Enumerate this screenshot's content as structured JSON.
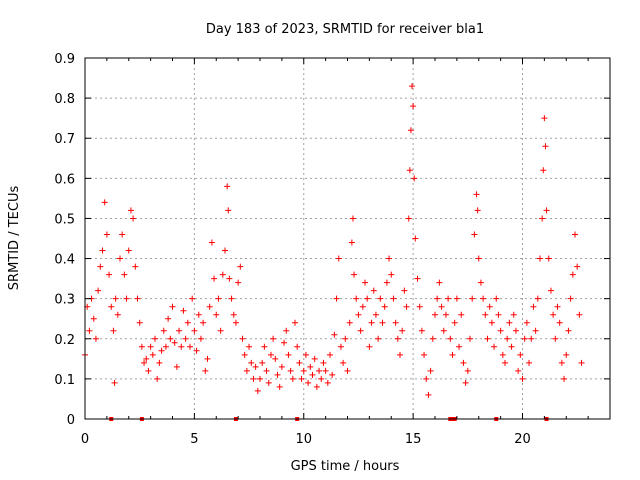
{
  "chart_data": {
    "type": "scatter",
    "title": "Day 183 of 2023, SRMTID for receiver bla1",
    "xlabel": "GPS time / hours",
    "ylabel": "SRMTID / TECUs",
    "xlim": [
      0,
      24
    ],
    "ylim": [
      0,
      0.9
    ],
    "xticks": [
      0,
      5,
      10,
      15,
      20
    ],
    "xtick_labels": [
      "0",
      "5",
      "10",
      "15",
      "20"
    ],
    "yticks": [
      0,
      0.1,
      0.2,
      0.3,
      0.4,
      0.5,
      0.6,
      0.7,
      0.8,
      0.9
    ],
    "ytick_labels": [
      "0",
      "0.1",
      "0.2",
      "0.3",
      "0.4",
      "0.5",
      "0.6",
      "0.7",
      "0.8",
      "0.9"
    ],
    "grid": true,
    "marker": "+",
    "color": "#ff0000",
    "series": [
      {
        "name": "SRMTID",
        "points": [
          [
            0.0,
            0.16
          ],
          [
            0.1,
            0.28
          ],
          [
            0.2,
            0.22
          ],
          [
            0.3,
            0.3
          ],
          [
            0.4,
            0.25
          ],
          [
            0.5,
            0.2
          ],
          [
            0.6,
            0.32
          ],
          [
            0.7,
            0.38
          ],
          [
            0.8,
            0.42
          ],
          [
            0.9,
            0.54
          ],
          [
            1.0,
            0.46
          ],
          [
            1.1,
            0.36
          ],
          [
            1.2,
            0.28
          ],
          [
            1.3,
            0.22
          ],
          [
            1.35,
            0.09
          ],
          [
            1.4,
            0.3
          ],
          [
            1.5,
            0.26
          ],
          [
            1.6,
            0.4
          ],
          [
            1.7,
            0.46
          ],
          [
            1.8,
            0.36
          ],
          [
            1.9,
            0.3
          ],
          [
            2.0,
            0.42
          ],
          [
            2.1,
            0.52
          ],
          [
            2.2,
            0.5
          ],
          [
            2.3,
            0.38
          ],
          [
            2.4,
            0.3
          ],
          [
            2.5,
            0.24
          ],
          [
            2.6,
            0.18
          ],
          [
            2.7,
            0.14
          ],
          [
            2.8,
            0.15
          ],
          [
            2.9,
            0.12
          ],
          [
            3.0,
            0.18
          ],
          [
            3.1,
            0.16
          ],
          [
            3.2,
            0.2
          ],
          [
            3.3,
            0.1
          ],
          [
            3.4,
            0.14
          ],
          [
            3.5,
            0.17
          ],
          [
            3.6,
            0.22
          ],
          [
            3.7,
            0.18
          ],
          [
            3.8,
            0.25
          ],
          [
            3.9,
            0.2
          ],
          [
            4.0,
            0.28
          ],
          [
            4.1,
            0.19
          ],
          [
            4.2,
            0.13
          ],
          [
            4.3,
            0.22
          ],
          [
            4.4,
            0.18
          ],
          [
            4.5,
            0.27
          ],
          [
            4.6,
            0.2
          ],
          [
            4.7,
            0.24
          ],
          [
            4.8,
            0.18
          ],
          [
            4.9,
            0.3
          ],
          [
            5.0,
            0.22
          ],
          [
            5.1,
            0.17
          ],
          [
            5.2,
            0.26
          ],
          [
            5.3,
            0.2
          ],
          [
            5.4,
            0.24
          ],
          [
            5.5,
            0.12
          ],
          [
            5.6,
            0.15
          ],
          [
            5.7,
            0.28
          ],
          [
            5.8,
            0.44
          ],
          [
            5.9,
            0.35
          ],
          [
            6.0,
            0.26
          ],
          [
            6.1,
            0.3
          ],
          [
            6.2,
            0.22
          ],
          [
            6.3,
            0.36
          ],
          [
            6.4,
            0.42
          ],
          [
            6.5,
            0.58
          ],
          [
            6.55,
            0.52
          ],
          [
            6.6,
            0.35
          ],
          [
            6.7,
            0.3
          ],
          [
            6.8,
            0.26
          ],
          [
            6.9,
            0.24
          ],
          [
            7.0,
            0.34
          ],
          [
            7.1,
            0.38
          ],
          [
            7.2,
            0.2
          ],
          [
            7.3,
            0.16
          ],
          [
            7.4,
            0.12
          ],
          [
            7.5,
            0.18
          ],
          [
            7.6,
            0.14
          ],
          [
            7.7,
            0.1
          ],
          [
            7.8,
            0.13
          ],
          [
            7.9,
            0.07
          ],
          [
            8.0,
            0.1
          ],
          [
            8.1,
            0.14
          ],
          [
            8.2,
            0.18
          ],
          [
            8.3,
            0.12
          ],
          [
            8.4,
            0.09
          ],
          [
            8.5,
            0.16
          ],
          [
            8.6,
            0.2
          ],
          [
            8.7,
            0.15
          ],
          [
            8.8,
            0.11
          ],
          [
            8.9,
            0.08
          ],
          [
            9.0,
            0.13
          ],
          [
            9.1,
            0.19
          ],
          [
            9.2,
            0.22
          ],
          [
            9.3,
            0.16
          ],
          [
            9.4,
            0.12
          ],
          [
            9.5,
            0.1
          ],
          [
            9.6,
            0.24
          ],
          [
            9.7,
            0.18
          ],
          [
            9.8,
            0.14
          ],
          [
            9.9,
            0.1
          ],
          [
            10.0,
            0.12
          ],
          [
            10.1,
            0.16
          ],
          [
            10.2,
            0.09
          ],
          [
            10.3,
            0.13
          ],
          [
            10.4,
            0.11
          ],
          [
            10.5,
            0.15
          ],
          [
            10.6,
            0.08
          ],
          [
            10.7,
            0.12
          ],
          [
            10.8,
            0.1
          ],
          [
            10.9,
            0.14
          ],
          [
            11.0,
            0.12
          ],
          [
            11.1,
            0.09
          ],
          [
            11.2,
            0.16
          ],
          [
            11.3,
            0.11
          ],
          [
            11.4,
            0.21
          ],
          [
            11.5,
            0.3
          ],
          [
            11.6,
            0.4
          ],
          [
            11.7,
            0.18
          ],
          [
            11.8,
            0.14
          ],
          [
            11.9,
            0.2
          ],
          [
            12.0,
            0.12
          ],
          [
            12.1,
            0.24
          ],
          [
            12.2,
            0.44
          ],
          [
            12.25,
            0.5
          ],
          [
            12.3,
            0.36
          ],
          [
            12.4,
            0.3
          ],
          [
            12.5,
            0.26
          ],
          [
            12.6,
            0.22
          ],
          [
            12.7,
            0.28
          ],
          [
            12.8,
            0.34
          ],
          [
            12.9,
            0.3
          ],
          [
            13.0,
            0.18
          ],
          [
            13.1,
            0.24
          ],
          [
            13.2,
            0.32
          ],
          [
            13.3,
            0.26
          ],
          [
            13.4,
            0.2
          ],
          [
            13.5,
            0.3
          ],
          [
            13.6,
            0.24
          ],
          [
            13.7,
            0.28
          ],
          [
            13.8,
            0.34
          ],
          [
            13.9,
            0.4
          ],
          [
            14.0,
            0.36
          ],
          [
            14.1,
            0.3
          ],
          [
            14.2,
            0.24
          ],
          [
            14.3,
            0.2
          ],
          [
            14.4,
            0.16
          ],
          [
            14.5,
            0.22
          ],
          [
            14.6,
            0.32
          ],
          [
            14.7,
            0.28
          ],
          [
            14.8,
            0.5
          ],
          [
            14.85,
            0.62
          ],
          [
            14.9,
            0.72
          ],
          [
            14.95,
            0.83
          ],
          [
            15.0,
            0.78
          ],
          [
            15.05,
            0.6
          ],
          [
            15.1,
            0.45
          ],
          [
            15.2,
            0.35
          ],
          [
            15.3,
            0.28
          ],
          [
            15.4,
            0.22
          ],
          [
            15.5,
            0.16
          ],
          [
            15.6,
            0.1
          ],
          [
            15.7,
            0.06
          ],
          [
            15.8,
            0.12
          ],
          [
            15.9,
            0.2
          ],
          [
            16.0,
            0.26
          ],
          [
            16.1,
            0.3
          ],
          [
            16.2,
            0.34
          ],
          [
            16.3,
            0.28
          ],
          [
            16.4,
            0.22
          ],
          [
            16.5,
            0.26
          ],
          [
            16.6,
            0.3
          ],
          [
            16.7,
            0.2
          ],
          [
            16.8,
            0.16
          ],
          [
            16.9,
            0.24
          ],
          [
            17.0,
            0.3
          ],
          [
            17.1,
            0.18
          ],
          [
            17.2,
            0.26
          ],
          [
            17.3,
            0.14
          ],
          [
            17.4,
            0.09
          ],
          [
            17.5,
            0.12
          ],
          [
            17.6,
            0.2
          ],
          [
            17.7,
            0.3
          ],
          [
            17.8,
            0.46
          ],
          [
            17.9,
            0.56
          ],
          [
            17.95,
            0.52
          ],
          [
            18.0,
            0.4
          ],
          [
            18.1,
            0.34
          ],
          [
            18.2,
            0.3
          ],
          [
            18.3,
            0.26
          ],
          [
            18.4,
            0.2
          ],
          [
            18.5,
            0.28
          ],
          [
            18.6,
            0.24
          ],
          [
            18.7,
            0.18
          ],
          [
            18.8,
            0.3
          ],
          [
            18.9,
            0.26
          ],
          [
            19.0,
            0.22
          ],
          [
            19.1,
            0.16
          ],
          [
            19.2,
            0.14
          ],
          [
            19.3,
            0.2
          ],
          [
            19.4,
            0.24
          ],
          [
            19.5,
            0.18
          ],
          [
            19.6,
            0.26
          ],
          [
            19.7,
            0.22
          ],
          [
            19.8,
            0.12
          ],
          [
            19.9,
            0.16
          ],
          [
            20.0,
            0.1
          ],
          [
            20.1,
            0.2
          ],
          [
            20.2,
            0.24
          ],
          [
            20.3,
            0.14
          ],
          [
            20.4,
            0.2
          ],
          [
            20.5,
            0.28
          ],
          [
            20.6,
            0.22
          ],
          [
            20.7,
            0.3
          ],
          [
            20.8,
            0.4
          ],
          [
            20.9,
            0.5
          ],
          [
            20.95,
            0.62
          ],
          [
            21.0,
            0.75
          ],
          [
            21.05,
            0.68
          ],
          [
            21.1,
            0.52
          ],
          [
            21.2,
            0.4
          ],
          [
            21.3,
            0.32
          ],
          [
            21.4,
            0.26
          ],
          [
            21.5,
            0.2
          ],
          [
            21.6,
            0.28
          ],
          [
            21.7,
            0.24
          ],
          [
            21.8,
            0.14
          ],
          [
            21.9,
            0.1
          ],
          [
            22.0,
            0.16
          ],
          [
            22.1,
            0.22
          ],
          [
            22.2,
            0.3
          ],
          [
            22.3,
            0.36
          ],
          [
            22.4,
            0.46
          ],
          [
            22.5,
            0.38
          ],
          [
            22.6,
            0.26
          ],
          [
            22.7,
            0.14
          ]
        ]
      }
    ],
    "rug_hours": [
      1.2,
      2.6,
      6.9,
      9.7,
      16.7,
      16.8,
      16.9,
      18.8,
      21.1
    ]
  }
}
